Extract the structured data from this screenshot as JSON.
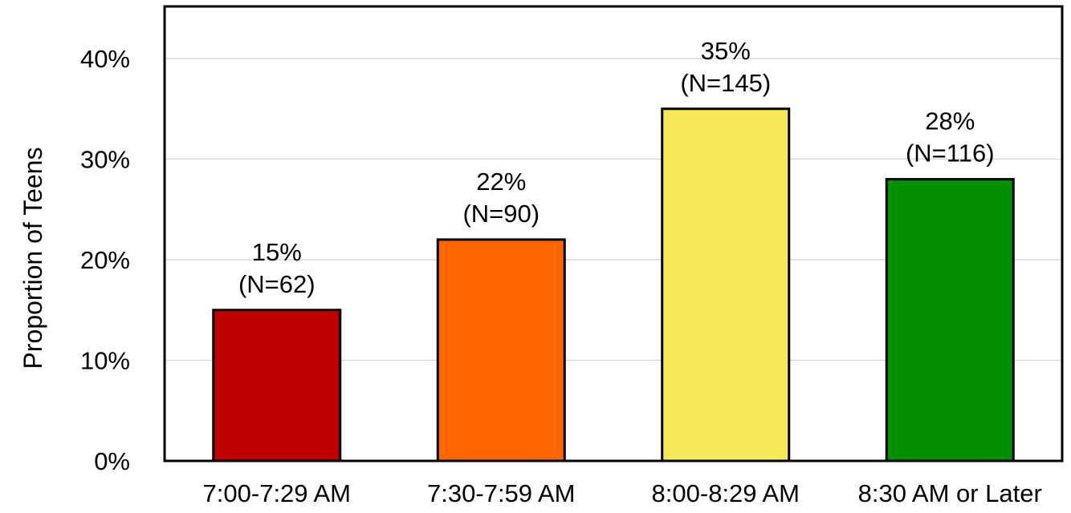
{
  "chart_data": {
    "type": "bar",
    "title": "",
    "xlabel": "",
    "ylabel": "Proportion of Teens",
    "categories": [
      "7:00-7:29 AM",
      "7:30-7:59 AM",
      "8:00-8:29 AM",
      "8:30 AM or Later"
    ],
    "values": [
      15,
      22,
      35,
      28
    ],
    "data_labels": [
      {
        "percent": "15%",
        "count": "(N=62)"
      },
      {
        "percent": "22%",
        "count": "(N=90)"
      },
      {
        "percent": "35%",
        "count": "(N=145)"
      },
      {
        "percent": "28%",
        "count": "(N=116)"
      }
    ],
    "counts": [
      62,
      90,
      145,
      116
    ],
    "colors": [
      "#c00000",
      "#ff6600",
      "#f7e857",
      "#009000"
    ],
    "ylim": [
      0,
      40
    ],
    "yticks": [
      0,
      10,
      20,
      30,
      40
    ],
    "ytick_labels": [
      "0%",
      "10%",
      "20%",
      "30%",
      "40%"
    ],
    "grid": true,
    "legend": "none"
  }
}
